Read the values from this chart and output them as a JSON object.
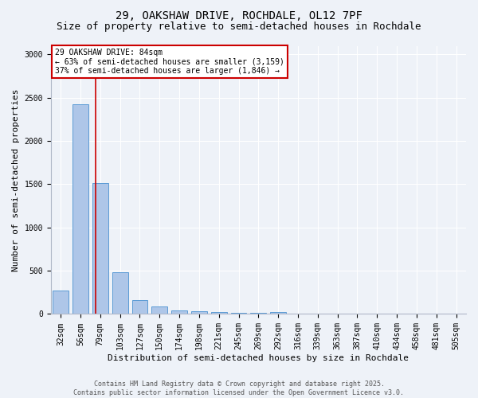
{
  "title_line1": "29, OAKSHAW DRIVE, ROCHDALE, OL12 7PF",
  "title_line2": "Size of property relative to semi-detached houses in Rochdale",
  "categories": [
    "32sqm",
    "56sqm",
    "79sqm",
    "103sqm",
    "127sqm",
    "150sqm",
    "174sqm",
    "198sqm",
    "221sqm",
    "245sqm",
    "269sqm",
    "292sqm",
    "316sqm",
    "339sqm",
    "363sqm",
    "387sqm",
    "410sqm",
    "434sqm",
    "458sqm",
    "481sqm",
    "505sqm"
  ],
  "values": [
    270,
    2420,
    1510,
    480,
    160,
    90,
    45,
    30,
    20,
    15,
    10,
    25,
    5,
    0,
    0,
    0,
    0,
    0,
    0,
    0,
    0
  ],
  "bar_color": "#aec6e8",
  "bar_edge_color": "#5b9bd5",
  "xlabel": "Distribution of semi-detached houses by size in Rochdale",
  "ylabel": "Number of semi-detached properties",
  "ylim": [
    0,
    3100
  ],
  "yticks": [
    0,
    500,
    1000,
    1500,
    2000,
    2500,
    3000
  ],
  "red_line_x": 1.77,
  "red_line_color": "#cc0000",
  "annotation_text": "29 OAKSHAW DRIVE: 84sqm\n← 63% of semi-detached houses are smaller (3,159)\n37% of semi-detached houses are larger (1,846) →",
  "annotation_box_color": "#ffffff",
  "annotation_box_edge_color": "#cc0000",
  "footer_line1": "Contains HM Land Registry data © Crown copyright and database right 2025.",
  "footer_line2": "Contains public sector information licensed under the Open Government Licence v3.0.",
  "background_color": "#eef2f8",
  "grid_color": "#ffffff",
  "title_fontsize": 10,
  "subtitle_fontsize": 9,
  "label_fontsize": 8,
  "tick_fontsize": 7,
  "annotation_fontsize": 7,
  "footer_fontsize": 6
}
